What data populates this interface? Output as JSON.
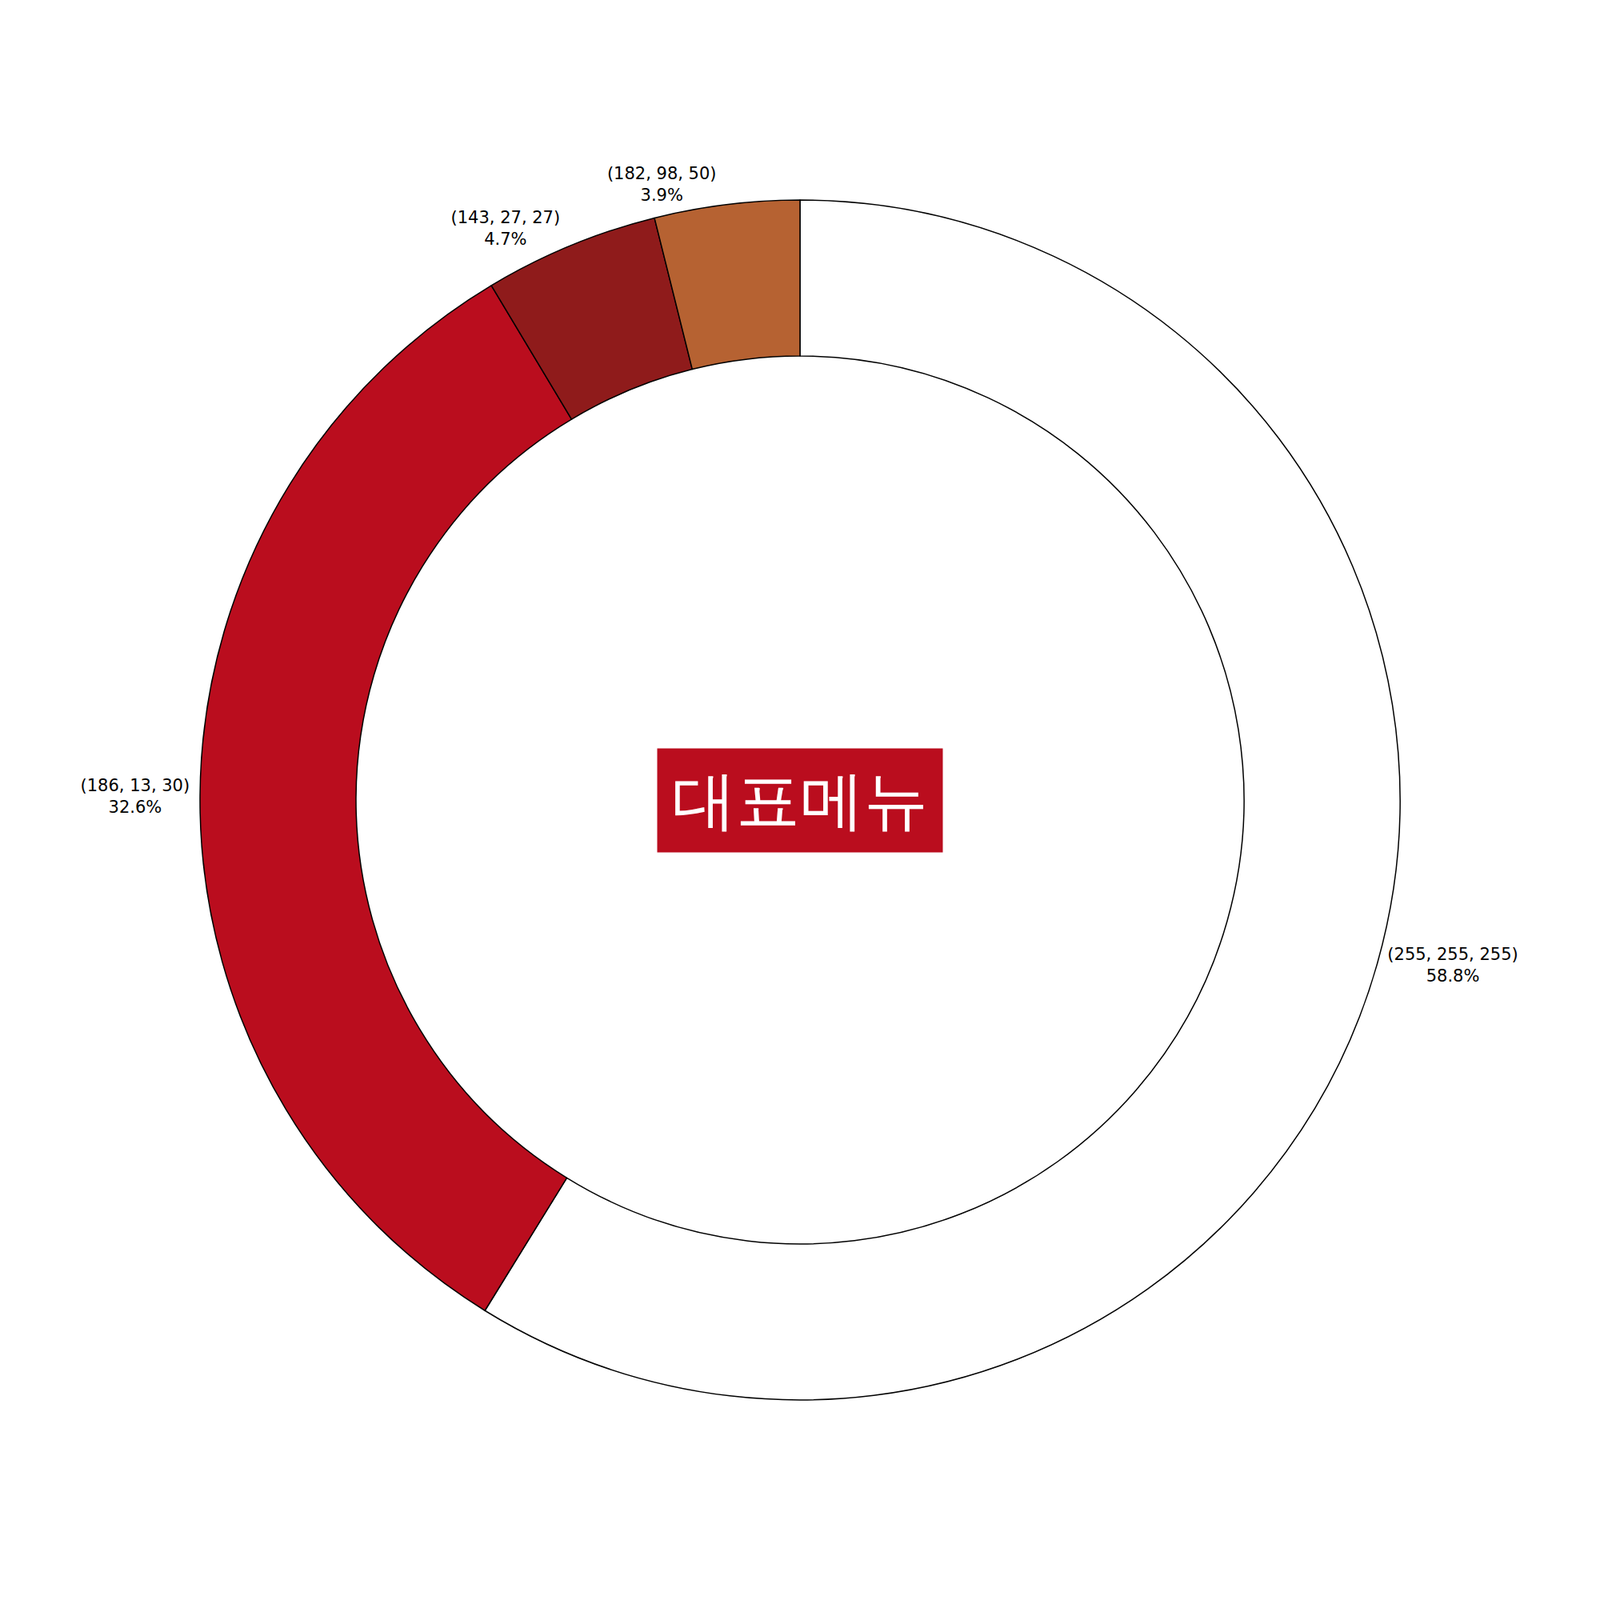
{
  "chart_data": {
    "type": "pie",
    "categories": [
      "(255, 255, 255)",
      "(186, 13, 30)",
      "(143, 27, 27)",
      "(182, 98, 50)"
    ],
    "values": [
      58.8,
      32.6,
      4.7,
      3.9
    ],
    "value_labels": [
      "58.8%",
      "32.6%",
      "4.7%",
      "3.9%"
    ],
    "colors": [
      "#ffffff",
      "#ba0d1e",
      "#8f1b1b",
      "#b66232"
    ],
    "data_labels": true,
    "annotations": [
      "대표메뉴"
    ]
  }
}
